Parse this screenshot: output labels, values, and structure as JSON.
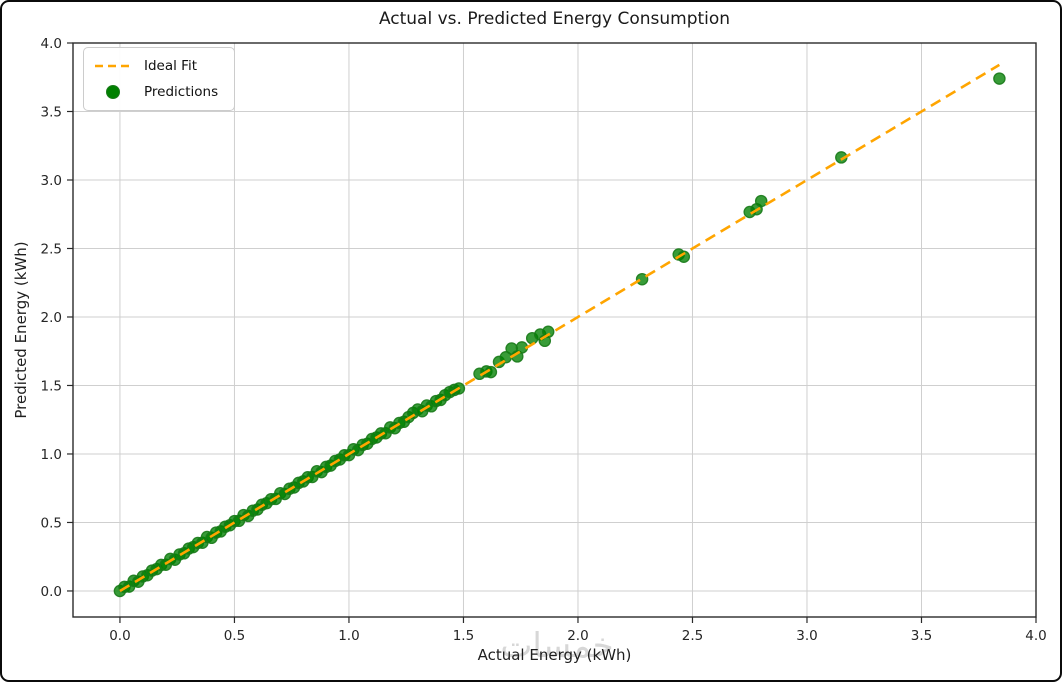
{
  "chart_data": {
    "type": "scatter",
    "title": "Actual vs. Predicted Energy Consumption",
    "xlabel": "Actual Energy (kWh)",
    "ylabel": "Predicted Energy (kWh)",
    "watermark": "خمسات",
    "xlim": [
      -0.205,
      4.0
    ],
    "ylim": [
      -0.19,
      4.0
    ],
    "grid": true,
    "x_ticks": [
      0,
      0.5,
      1.0,
      1.5,
      2.0,
      2.5,
      3.0,
      3.5,
      4.0
    ],
    "x_tick_labels": [
      "0.0",
      "0.5",
      "1.0",
      "1.5",
      "2.0",
      "2.5",
      "3.0",
      "3.5",
      "4.0"
    ],
    "y_ticks": [
      0,
      0.5,
      1.0,
      1.5,
      2.0,
      2.5,
      3.0,
      3.5,
      4.0
    ],
    "y_tick_labels": [
      "0.0",
      "0.5",
      "1.0",
      "1.5",
      "2.0",
      "2.5",
      "3.0",
      "3.5",
      "4.0"
    ],
    "colors": {
      "ideal_fit": "#FFA500",
      "predictions_fill": "#008000",
      "predictions_edge": "#1a7a1a",
      "grid": "#cfcfcf",
      "frame": "#2a2a2a",
      "tick_text": "#262626"
    },
    "legend": {
      "position": "upper left",
      "entries": [
        {
          "label": "Ideal Fit",
          "type": "dashed-line",
          "color": "#FFA500"
        },
        {
          "label": "Predictions",
          "type": "dot",
          "color": "#008000"
        }
      ]
    },
    "ideal_fit_line": {
      "x": [
        0.0,
        3.84
      ],
      "y": [
        0.0,
        3.84
      ]
    },
    "series": [
      {
        "name": "Predictions",
        "points": [
          [
            0.0,
            0.0
          ],
          [
            0.02,
            0.03
          ],
          [
            0.04,
            0.032
          ],
          [
            0.06,
            0.074
          ],
          [
            0.08,
            0.068
          ],
          [
            0.1,
            0.106
          ],
          [
            0.12,
            0.115
          ],
          [
            0.14,
            0.149
          ],
          [
            0.16,
            0.16
          ],
          [
            0.18,
            0.19
          ],
          [
            0.2,
            0.192
          ],
          [
            0.22,
            0.234
          ],
          [
            0.24,
            0.228
          ],
          [
            0.26,
            0.266
          ],
          [
            0.28,
            0.275
          ],
          [
            0.3,
            0.309
          ],
          [
            0.32,
            0.32
          ],
          [
            0.34,
            0.35
          ],
          [
            0.36,
            0.352
          ],
          [
            0.38,
            0.394
          ],
          [
            0.4,
            0.388
          ],
          [
            0.42,
            0.426
          ],
          [
            0.44,
            0.435
          ],
          [
            0.46,
            0.469
          ],
          [
            0.48,
            0.48
          ],
          [
            0.5,
            0.51
          ],
          [
            0.52,
            0.512
          ],
          [
            0.54,
            0.554
          ],
          [
            0.56,
            0.548
          ],
          [
            0.58,
            0.586
          ],
          [
            0.6,
            0.595
          ],
          [
            0.62,
            0.629
          ],
          [
            0.64,
            0.64
          ],
          [
            0.66,
            0.67
          ],
          [
            0.68,
            0.672
          ],
          [
            0.7,
            0.714
          ],
          [
            0.72,
            0.708
          ],
          [
            0.74,
            0.746
          ],
          [
            0.76,
            0.755
          ],
          [
            0.78,
            0.789
          ],
          [
            0.8,
            0.8
          ],
          [
            0.82,
            0.83
          ],
          [
            0.84,
            0.832
          ],
          [
            0.86,
            0.874
          ],
          [
            0.88,
            0.868
          ],
          [
            0.9,
            0.906
          ],
          [
            0.92,
            0.915
          ],
          [
            0.94,
            0.949
          ],
          [
            0.96,
            0.96
          ],
          [
            0.98,
            0.99
          ],
          [
            1.0,
            0.992
          ],
          [
            1.02,
            1.034
          ],
          [
            1.04,
            1.028
          ],
          [
            1.06,
            1.066
          ],
          [
            1.08,
            1.075
          ],
          [
            1.1,
            1.109
          ],
          [
            1.12,
            1.12
          ],
          [
            1.14,
            1.15
          ],
          [
            1.16,
            1.152
          ],
          [
            1.18,
            1.194
          ],
          [
            1.2,
            1.188
          ],
          [
            1.22,
            1.226
          ],
          [
            1.24,
            1.235
          ],
          [
            1.26,
            1.269
          ],
          [
            1.28,
            1.3
          ],
          [
            1.3,
            1.325
          ],
          [
            1.32,
            1.312
          ],
          [
            1.34,
            1.354
          ],
          [
            1.36,
            1.348
          ],
          [
            1.38,
            1.386
          ],
          [
            1.4,
            1.395
          ],
          [
            1.42,
            1.429
          ],
          [
            1.44,
            1.452
          ],
          [
            1.46,
            1.468
          ],
          [
            1.48,
            1.478
          ],
          [
            1.57,
            1.585
          ],
          [
            1.6,
            1.603
          ],
          [
            1.62,
            1.598
          ],
          [
            1.655,
            1.672
          ],
          [
            1.685,
            1.706
          ],
          [
            1.71,
            1.77
          ],
          [
            1.735,
            1.712
          ],
          [
            1.755,
            1.778
          ],
          [
            1.8,
            1.845
          ],
          [
            1.835,
            1.872
          ],
          [
            1.855,
            1.826
          ],
          [
            1.87,
            1.892
          ],
          [
            2.28,
            2.276
          ],
          [
            2.44,
            2.456
          ],
          [
            2.462,
            2.44
          ],
          [
            2.75,
            2.766
          ],
          [
            2.78,
            2.787
          ],
          [
            2.8,
            2.846
          ],
          [
            3.15,
            3.165
          ],
          [
            3.84,
            3.74
          ]
        ]
      }
    ]
  }
}
